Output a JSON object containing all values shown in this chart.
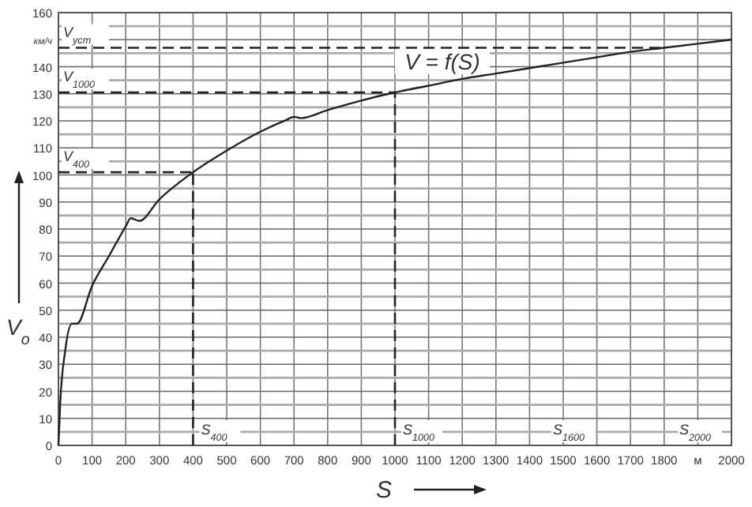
{
  "chart_data": {
    "type": "line",
    "xlabel": "S",
    "ylabel": "V$_{o}$",
    "x": [
      0,
      5,
      20,
      40,
      55,
      100,
      150,
      200,
      215,
      240,
      300,
      400,
      500,
      600,
      680,
      700,
      720,
      800,
      900,
      1000,
      1100,
      1200,
      1300,
      1400,
      1500,
      1600,
      1700,
      1800,
      1900,
      2000
    ],
    "series": [
      {
        "color": "#222222",
        "values": [
          0,
          15,
          35,
          45,
          45,
          59,
          70,
          81,
          84,
          83,
          91,
          101,
          109,
          116,
          120.5,
          121.5,
          121,
          124,
          127.5,
          130.5,
          133,
          135.5,
          137.5,
          139.5,
          141.5,
          143.5,
          145.5,
          147,
          148.5,
          150
        ]
      }
    ],
    "xlim": [
      0,
      2000
    ],
    "xticks": [
      0,
      100,
      200,
      300,
      400,
      500,
      600,
      700,
      800,
      900,
      1000,
      1100,
      1200,
      1300,
      1400,
      1500,
      1600,
      1700,
      1800,
      {
        "value": 1900,
        "label": "м"
      },
      2000
    ],
    "ylim": [
      0,
      160
    ],
    "yticks": [
      0,
      {
        "value": 5,
        "label": null
      },
      10,
      {
        "value": 15,
        "label": null
      },
      20,
      {
        "value": 25,
        "label": null
      },
      30,
      {
        "value": 35,
        "label": null
      },
      40,
      {
        "value": 45,
        "label": null
      },
      50,
      {
        "value": 55,
        "label": null
      },
      60,
      {
        "value": 65,
        "label": null
      },
      70,
      {
        "value": 75,
        "label": null
      },
      80,
      {
        "value": 85,
        "label": null
      },
      90,
      {
        "value": 95,
        "label": null
      },
      100,
      {
        "value": 105,
        "label": null
      },
      110,
      {
        "value": 115,
        "label": null
      },
      120,
      {
        "value": 125,
        "label": null
      },
      130,
      {
        "value": 135,
        "label": null
      },
      140,
      {
        "value": 145,
        "label": null
      },
      {
        "value": 150,
        "label": "км/ч"
      },
      {
        "value": 155,
        "label": null
      },
      160
    ],
    "grid": true,
    "marker": "none",
    "line_style": "solid",
    "ref_lines": [
      {
        "axis": "y",
        "value": 147,
        "label": "V$_{уст}$",
        "line_style": "dashed"
      },
      {
        "axis": "y",
        "value": 130.5,
        "label": "V$_{1000}$",
        "line_style": "dashed"
      },
      {
        "axis": "y",
        "value": 101,
        "label": "V$_{400}$",
        "line_style": "dashed"
      },
      {
        "axis": "x",
        "value": 400,
        "label": "S$_{400}$",
        "line_style": "dashed"
      },
      {
        "axis": "x",
        "value": 1000,
        "label": "S$_{1000}$",
        "line_style": "dashed"
      }
    ],
    "annotations": [
      "V = f(S)",
      "S$_{1600}$",
      "S$_{2000}$"
    ]
  }
}
